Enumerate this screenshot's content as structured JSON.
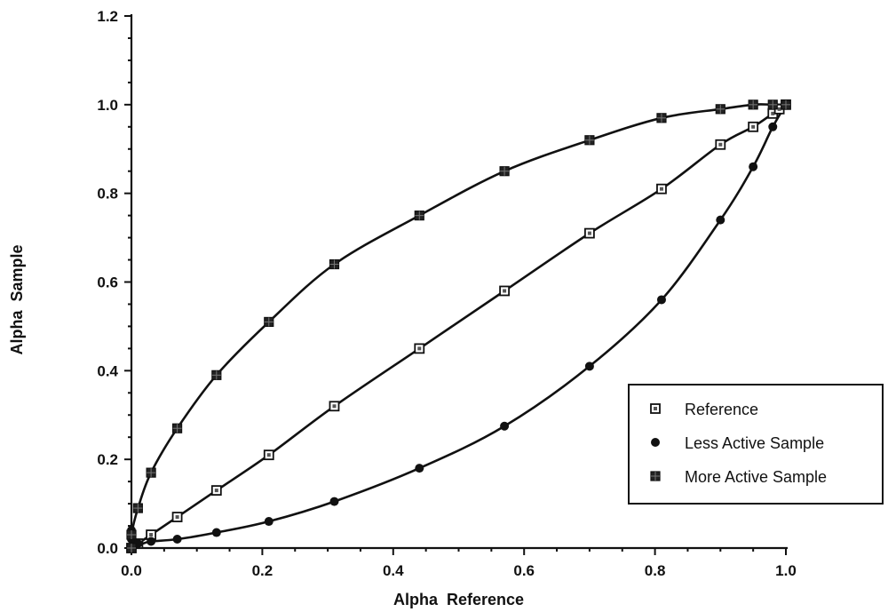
{
  "chart_data": {
    "type": "line",
    "title": "",
    "xlabel": "Alpha  Reference",
    "ylabel": "Alpha  Sample",
    "xlim": [
      0.0,
      1.0
    ],
    "ylim": [
      0.0,
      1.2
    ],
    "xticks": [
      "0.0",
      "0.2",
      "0.4",
      "0.6",
      "0.8",
      "1.0"
    ],
    "xtick_values": [
      0.0,
      0.2,
      0.4,
      0.6,
      0.8,
      1.0
    ],
    "yticks": [
      "0.0",
      "0.2",
      "0.4",
      "0.6",
      "0.8",
      "1.0",
      "1.2"
    ],
    "ytick_values": [
      0.0,
      0.2,
      0.4,
      0.6,
      0.8,
      1.0,
      1.2
    ],
    "grid": false,
    "legend_position": "bottom-right",
    "series": [
      {
        "name": "Reference",
        "marker": "open-square",
        "points": [
          [
            0.0,
            0.0
          ],
          [
            0.01,
            0.01
          ],
          [
            0.03,
            0.03
          ],
          [
            0.07,
            0.07
          ],
          [
            0.13,
            0.13
          ],
          [
            0.21,
            0.21
          ],
          [
            0.31,
            0.32
          ],
          [
            0.44,
            0.45
          ],
          [
            0.57,
            0.58
          ],
          [
            0.7,
            0.71
          ],
          [
            0.81,
            0.81
          ],
          [
            0.9,
            0.91
          ],
          [
            0.95,
            0.95
          ],
          [
            0.98,
            0.98
          ],
          [
            0.99,
            0.99
          ],
          [
            1.0,
            1.0
          ]
        ]
      },
      {
        "name": "Less Active Sample",
        "marker": "filled-circle",
        "points": [
          [
            0.0,
            0.0
          ],
          [
            0.0,
            0.02
          ],
          [
            0.0,
            0.04
          ],
          [
            0.01,
            0.01
          ],
          [
            0.03,
            0.015
          ],
          [
            0.07,
            0.02
          ],
          [
            0.13,
            0.035
          ],
          [
            0.21,
            0.06
          ],
          [
            0.31,
            0.105
          ],
          [
            0.44,
            0.18
          ],
          [
            0.57,
            0.275
          ],
          [
            0.7,
            0.41
          ],
          [
            0.81,
            0.56
          ],
          [
            0.9,
            0.74
          ],
          [
            0.95,
            0.86
          ],
          [
            0.98,
            0.95
          ],
          [
            1.0,
            1.0
          ]
        ]
      },
      {
        "name": "More Active Sample",
        "marker": "filled-square",
        "points": [
          [
            0.0,
            0.0
          ],
          [
            0.0,
            0.03
          ],
          [
            0.01,
            0.09
          ],
          [
            0.03,
            0.17
          ],
          [
            0.07,
            0.27
          ],
          [
            0.13,
            0.39
          ],
          [
            0.21,
            0.51
          ],
          [
            0.31,
            0.64
          ],
          [
            0.44,
            0.75
          ],
          [
            0.57,
            0.85
          ],
          [
            0.7,
            0.92
          ],
          [
            0.81,
            0.97
          ],
          [
            0.9,
            0.99
          ],
          [
            0.95,
            1.0
          ],
          [
            0.98,
            1.0
          ],
          [
            1.0,
            1.0
          ]
        ]
      }
    ]
  }
}
